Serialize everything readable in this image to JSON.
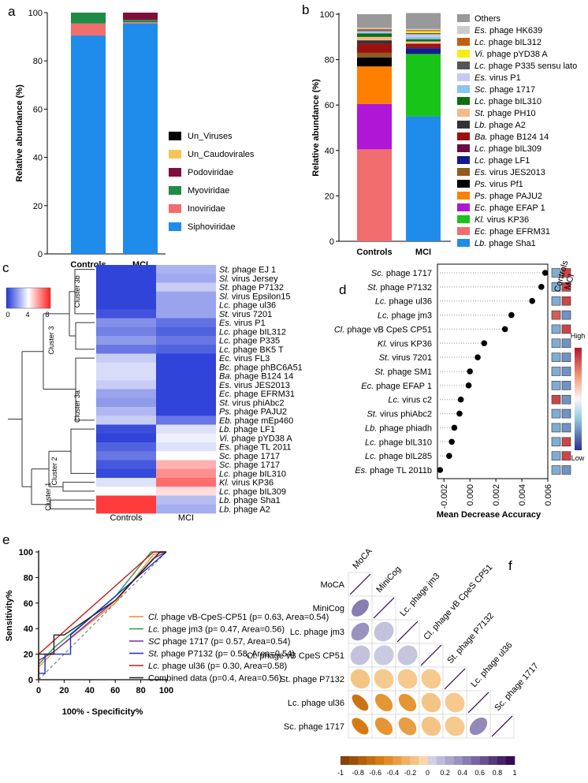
{
  "panels": {
    "a": "a",
    "b": "b",
    "c": "c",
    "d": "d",
    "e": "e",
    "f": "f"
  },
  "colors": {
    "blue": "#1f8ceb",
    "salmon": "#f26d6d",
    "green": "#1e8c45",
    "maroon": "#7f0f3a",
    "heat_low": "#1f35d6",
    "heat_high": "#ff1f1f"
  },
  "chart_data": [
    {
      "id": "a",
      "type": "bar",
      "stacked": true,
      "ylabel": "Relative abundance (%)",
      "ylim": [
        0,
        100
      ],
      "yticks": [
        0,
        20,
        40,
        60,
        80,
        100
      ],
      "categories": [
        "Controls",
        "MCI"
      ],
      "series": [
        {
          "name": "Siphoviridae",
          "color": "#1f8ceb",
          "values": [
            90.5,
            95.5
          ]
        },
        {
          "name": "Inoviridae",
          "color": "#f26d6d",
          "values": [
            5.0,
            0.5
          ]
        },
        {
          "name": "Myoviridae",
          "color": "#1e8c45",
          "values": [
            4.5,
            1.0
          ]
        },
        {
          "name": "Podoviridae",
          "color": "#7f0f3a",
          "values": [
            0.0,
            3.0
          ]
        },
        {
          "name": "Un_Caudovirales",
          "color": "#f5c55b",
          "values": [
            0.0,
            0.0
          ]
        },
        {
          "name": "Un_Viruses",
          "color": "#000000",
          "values": [
            0.0,
            0.0
          ]
        }
      ],
      "legend_order": [
        "Un_Viruses",
        "Un_Caudovirales",
        "Podoviridae",
        "Myoviridae",
        "Inoviridae",
        "Siphoviridae"
      ]
    },
    {
      "id": "b",
      "type": "bar",
      "stacked": true,
      "ylabel": "Relative abundance (%)",
      "ylim": [
        0,
        100
      ],
      "yticks": [
        0,
        20,
        40,
        60,
        80,
        100
      ],
      "categories": [
        "Controls",
        "MCI"
      ],
      "series": [
        {
          "genus": "Lb.",
          "rest": "phage Sha1",
          "color": "#1f8ceb",
          "values": [
            0,
            55
          ]
        },
        {
          "genus": "Ec.",
          "rest": "phage EFRM31",
          "color": "#f26d6d",
          "values": [
            40.5,
            0
          ]
        },
        {
          "genus": "Kl.",
          "rest": "virus KP36",
          "color": "#19c418",
          "values": [
            0,
            27.5
          ]
        },
        {
          "genus": "Ec.",
          "rest": "phage EFAP 1",
          "color": "#b016d6",
          "values": [
            20,
            0
          ]
        },
        {
          "genus": "Ps.",
          "rest": "phage PAJU2",
          "color": "#ff7f00",
          "values": [
            16.5,
            0
          ]
        },
        {
          "genus": "Ps.",
          "rest": "virus Pf1",
          "color": "#000000",
          "values": [
            4,
            0
          ]
        },
        {
          "genus": "Es.",
          "rest": "virus JES2013",
          "color": "#8f5b1f",
          "values": [
            2,
            0
          ]
        },
        {
          "genus": "Lc.",
          "rest": "phage LF1",
          "color": "#121b8c",
          "values": [
            0,
            2.5
          ]
        },
        {
          "genus": "Lc.",
          "rest": "phage bIL309",
          "color": "#6b0d44",
          "values": [
            0,
            0.5
          ]
        },
        {
          "genus": "Ba.",
          "rest": "phage B124 14",
          "color": "#9c1010",
          "values": [
            4,
            1.5
          ]
        },
        {
          "genus": "Lb.",
          "rest": "phage A2",
          "color": "#333333",
          "values": [
            1.5,
            0
          ]
        },
        {
          "genus": "St.",
          "rest": "phage PH10",
          "color": "#f5b98a",
          "values": [
            1.5,
            1
          ]
        },
        {
          "genus": "Lc.",
          "rest": "phage bIL310",
          "color": "#0f6e0f",
          "values": [
            1.5,
            1
          ]
        },
        {
          "genus": "Sc.",
          "rest": "phage 1717",
          "color": "#8cc4f2",
          "values": [
            0.5,
            1
          ]
        },
        {
          "genus": "Es.",
          "rest": "virus P1",
          "color": "#c6c8f5",
          "values": [
            0.5,
            1.2
          ]
        },
        {
          "genus": "Lc.",
          "rest": "phage P335 sensu lato",
          "color": "#555555",
          "values": [
            0.5,
            0.5
          ]
        },
        {
          "genus": "Vi.",
          "rest": "phage pYD38 A",
          "color": "#f2ee12",
          "values": [
            0,
            0.8
          ]
        },
        {
          "genus": "Lc.",
          "rest": "phage bIL312",
          "color": "#c45f0e",
          "values": [
            0.5,
            0.5
          ]
        },
        {
          "genus": "Es.",
          "rest": "phage HK639",
          "color": "#cccccc",
          "values": [
            0.5,
            0.5
          ]
        },
        {
          "genus": "",
          "rest": "Others",
          "color": "#999999",
          "values": [
            6,
            7
          ]
        }
      ]
    },
    {
      "id": "c",
      "type": "heatmap",
      "columns": [
        "Controls",
        "MCI"
      ],
      "colorbar": {
        "min": 0,
        "max": 8,
        "ticks": [
          "0",
          "4",
          "8"
        ]
      },
      "clusters": [
        "Cluster 3b",
        "Cluster 3",
        "Cluster 3a",
        "Cluster 2",
        "Cluster 1"
      ],
      "rows": [
        {
          "genus": "St.",
          "rest": "phage EJ 1",
          "values": [
            0.3,
            2.5
          ]
        },
        {
          "genus": "Sl.",
          "rest": "virus Jersey",
          "values": [
            0.3,
            2.3
          ]
        },
        {
          "genus": "St.",
          "rest": "phage P7132",
          "values": [
            0.3,
            3.0
          ]
        },
        {
          "genus": "Sl.",
          "rest": "virus Epsilon15",
          "values": [
            0.3,
            2.2
          ]
        },
        {
          "genus": "Lc.",
          "rest": "phage ul36",
          "values": [
            0.3,
            2.2
          ]
        },
        {
          "genus": "St.",
          "rest": "virus 7201",
          "values": [
            0.6,
            2.2
          ]
        },
        {
          "genus": "Es.",
          "rest": "virus P1",
          "values": [
            1.8,
            1.2
          ]
        },
        {
          "genus": "Lc.",
          "rest": "phage bIL312",
          "values": [
            1.5,
            0.9
          ]
        },
        {
          "genus": "Lc.",
          "rest": "phage P335",
          "values": [
            2.0,
            1.3
          ]
        },
        {
          "genus": "Lc.",
          "rest": "phage BK5 T",
          "values": [
            1.3,
            0.9
          ]
        },
        {
          "genus": "Ec.",
          "rest": "virus FL3",
          "values": [
            3.0,
            0.3
          ]
        },
        {
          "genus": "Bc.",
          "rest": "phage phBC6A51",
          "values": [
            3.3,
            0.3
          ]
        },
        {
          "genus": "Ba.",
          "rest": "phage B124 14",
          "values": [
            3.3,
            0.3
          ]
        },
        {
          "genus": "Es.",
          "rest": "virus JES2013",
          "values": [
            3.0,
            0.3
          ]
        },
        {
          "genus": "Ec.",
          "rest": "phage EFRM31",
          "values": [
            2.2,
            0.3
          ]
        },
        {
          "genus": "St.",
          "rest": "virus phiAbc2",
          "values": [
            2.0,
            0.3
          ]
        },
        {
          "genus": "Ps.",
          "rest": "phage PAJU2",
          "values": [
            2.6,
            0.3
          ]
        },
        {
          "genus": "Eb.",
          "rest": "phage mEp460",
          "values": [
            3.0,
            1.3
          ]
        },
        {
          "genus": "Lb.",
          "rest": "phage LF1",
          "values": [
            0.5,
            3.4
          ]
        },
        {
          "genus": "Vi.",
          "rest": "phage pYD38 A",
          "values": [
            0.3,
            3.7
          ]
        },
        {
          "genus": "Es.",
          "rest": "phage TL 2011",
          "values": [
            0.9,
            3.4
          ]
        },
        {
          "genus": "Sc.",
          "rest": "phage 1717",
          "values": [
            1.3,
            4.0
          ]
        },
        {
          "genus": "Sc.",
          "rest": "phage 1717",
          "values": [
            0.7,
            5.4
          ]
        },
        {
          "genus": "Lc.",
          "rest": "phage bIL310",
          "values": [
            0.4,
            6.0
          ]
        },
        {
          "genus": "Kl.",
          "rest": "virus KP36",
          "values": [
            3.4,
            6.6
          ]
        },
        {
          "genus": "Lc.",
          "rest": "phage bIL309",
          "values": [
            4.0,
            4.6
          ]
        },
        {
          "genus": "Lb.",
          "rest": "phage Sha1",
          "values": [
            7.5,
            2.7
          ]
        },
        {
          "genus": "Lb.",
          "rest": "phage A2",
          "values": [
            7.5,
            2.4
          ]
        }
      ]
    },
    {
      "id": "d",
      "type": "scatter",
      "xlabel": "Mean Decrease Accuracy",
      "xlim": [
        -0.0025,
        0.006
      ],
      "xticks": [
        "-0.002",
        "0.000",
        "0.002",
        "0.004",
        "0.006"
      ],
      "group_labels": [
        "Controls",
        "MCI"
      ],
      "colorbar_labels": {
        "high": "High",
        "low": "Low"
      },
      "points": [
        {
          "genus": "Sc.",
          "rest": "phage 1717",
          "x": 0.0058,
          "ctrl": 0.25,
          "mci": 0.9
        },
        {
          "genus": "St.",
          "rest": "phage P7132",
          "x": 0.0055,
          "ctrl": 0.25,
          "mci": 0.9
        },
        {
          "genus": "Lc.",
          "rest": "phage ul36",
          "x": 0.0048,
          "ctrl": 0.25,
          "mci": 0.9
        },
        {
          "genus": "Lc.",
          "rest": "phage jm3",
          "x": 0.0032,
          "ctrl": 0.85,
          "mci": 0.2
        },
        {
          "genus": "Cl.",
          "rest": "phage vB CpeS CP51",
          "x": 0.0027,
          "ctrl": 0.25,
          "mci": 0.9
        },
        {
          "genus": "Kl.",
          "rest": "virus KP36",
          "x": 0.0011,
          "ctrl": 0.25,
          "mci": 0.2
        },
        {
          "genus": "St.",
          "rest": "virus 7201",
          "x": 0.0006,
          "ctrl": 0.25,
          "mci": 0.2
        },
        {
          "genus": "St.",
          "rest": "phage SM1",
          "x": 0.0,
          "ctrl": 0.25,
          "mci": 0.2
        },
        {
          "genus": "Ec.",
          "rest": "phage EFAP 1",
          "x": -0.0001,
          "ctrl": 0.25,
          "mci": 0.2
        },
        {
          "genus": "Lc.",
          "rest": "virus c2",
          "x": -0.0007,
          "ctrl": 0.9,
          "mci": 0.2
        },
        {
          "genus": "St.",
          "rest": "virus phiAbc2",
          "x": -0.0008,
          "ctrl": 0.25,
          "mci": 0.2
        },
        {
          "genus": "Lb.",
          "rest": "phage phiadh",
          "x": -0.0012,
          "ctrl": 0.25,
          "mci": 0.2
        },
        {
          "genus": "Lc.",
          "rest": "phage bIL310",
          "x": -0.0014,
          "ctrl": 0.25,
          "mci": 0.9
        },
        {
          "genus": "Lc.",
          "rest": "phage bIL285",
          "x": -0.0016,
          "ctrl": 0.25,
          "mci": 0.9
        },
        {
          "genus": "Es.",
          "rest": "phage TL 2011b",
          "x": -0.0023,
          "ctrl": 0.25,
          "mci": 0.2
        }
      ]
    },
    {
      "id": "e",
      "type": "line",
      "xlabel": "100% - Specificity%",
      "ylabel": "Sensitivity%",
      "xlim": [
        0,
        100
      ],
      "ylim": [
        0,
        100
      ],
      "ticks": [
        0,
        20,
        40,
        60,
        80,
        100
      ],
      "series": [
        {
          "genus": "Cl.",
          "rest": "phage vB-CpeS-CP51 (p= 0.63, Area=0.54)",
          "color": "#f28c28",
          "x": [
            0,
            0,
            12,
            60,
            90,
            100
          ],
          "y": [
            0,
            10,
            22,
            60,
            98,
            100
          ]
        },
        {
          "genus": "Lc.",
          "rest": "phage jm3 (p= 0.47, Area=0.56)",
          "color": "#2a9a4a",
          "x": [
            0,
            0,
            12,
            60,
            88,
            100
          ],
          "y": [
            0,
            12,
            25,
            65,
            100,
            100
          ]
        },
        {
          "genus": "SC",
          "rest": "phage 1717 (p= 0.57, Area=0.54)",
          "color": "#7b2fa0",
          "x": [
            0,
            0,
            12,
            60,
            90,
            100
          ],
          "y": [
            0,
            15,
            22,
            62,
            95,
            100
          ]
        },
        {
          "genus": "St.",
          "rest": "phage P7132 (p= 0.58, Area=0.54)",
          "color": "#1b2cc9",
          "x": [
            0,
            0,
            5,
            5,
            25,
            25,
            100
          ],
          "y": [
            0,
            5,
            5,
            20,
            20,
            35,
            100
          ]
        },
        {
          "genus": "Lc.",
          "rest": "phage ul36 (p= 0.30, Area=0.58)",
          "color": "#c41b1b",
          "x": [
            0,
            0,
            90,
            100
          ],
          "y": [
            0,
            20,
            100,
            100
          ]
        },
        {
          "genus": "",
          "rest": "Combined data (p=0.4, Area=0.56)",
          "color": "#222222",
          "x": [
            0,
            0,
            12,
            12,
            20,
            60,
            95,
            100
          ],
          "y": [
            0,
            20,
            20,
            35,
            35,
            62,
            100,
            100
          ]
        }
      ],
      "reference_line": true
    },
    {
      "id": "f",
      "type": "heatmap",
      "subtype": "correlation",
      "labels": [
        "MoCA",
        "MiniCog",
        "Lc. phage jm3",
        "Cl. phage vB CpeS CP51",
        "St. phage P7132",
        "Lc. phage ul36",
        "Sc. phage 1717"
      ],
      "colorbar_ticks": [
        "-1",
        "-0.8",
        "-0.6",
        "-0.4",
        "-0.2",
        "0",
        "0.2",
        "0.4",
        "0.6",
        "0.8",
        "1"
      ],
      "lower": [
        [
          0.45
        ],
        [
          0.35,
          0.12
        ],
        [
          0.12,
          0.08,
          0.1
        ],
        [
          -0.15,
          -0.12,
          -0.12,
          -0.12
        ],
        [
          -0.6,
          -0.4,
          -0.4,
          -0.15,
          -0.12
        ],
        [
          -0.55,
          -0.4,
          -0.35,
          -0.15,
          -0.12,
          0.4
        ]
      ]
    }
  ]
}
